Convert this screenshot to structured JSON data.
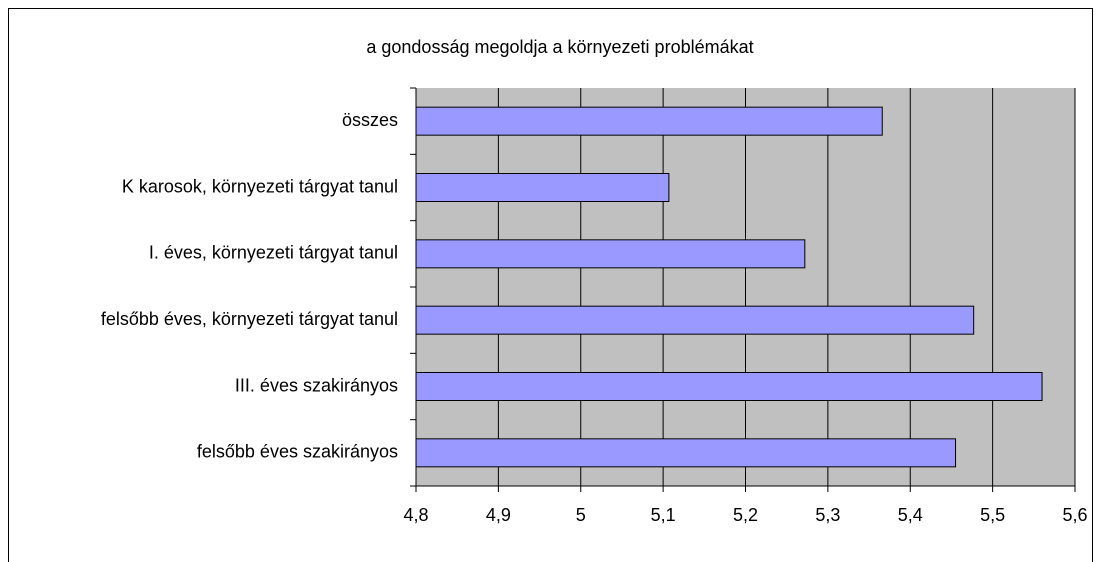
{
  "chart_data": {
    "type": "barh",
    "title": "a gondosság megoldja a környezeti problémákat",
    "categories": [
      "összes",
      "K karosok, környezeti tárgyat tanul",
      "I. éves, környezeti tárgyat tanul",
      "felsőbb éves, környezeti tárgyat tanul",
      "III. éves szakirányos",
      "felsőbb éves szakirányos"
    ],
    "values": [
      5.366,
      5.107,
      5.272,
      5.477,
      5.56,
      5.455
    ],
    "color": "#9999ff",
    "xlim": [
      4.8,
      5.6
    ],
    "xticks": [
      {
        "value": 4.8,
        "label": "4,8"
      },
      {
        "value": 4.9,
        "label": "4,9"
      },
      5,
      {
        "value": 5.1,
        "label": "5,1"
      },
      {
        "value": 5.2,
        "label": "5,2"
      },
      {
        "value": 5.3,
        "label": "5,3"
      },
      {
        "value": 5.4,
        "label": "5,4"
      },
      {
        "value": 5.5,
        "label": "5,5"
      },
      {
        "value": 5.6,
        "label": "5,6"
      }
    ],
    "grid": true
  }
}
